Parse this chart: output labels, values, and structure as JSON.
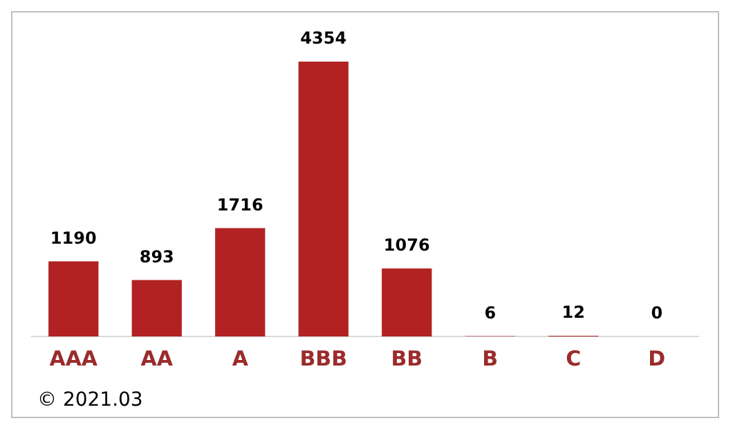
{
  "chart_data": {
    "type": "bar",
    "categories": [
      "AAA",
      "AA",
      "A",
      "BBB",
      "BB",
      "B",
      "C",
      "D"
    ],
    "values": [
      1190,
      893,
      1716,
      4354,
      1076,
      6,
      12,
      0
    ],
    "color": "#b22222",
    "data_labels": true,
    "grid": false,
    "legend": false,
    "tick_labels": "x",
    "annotations": [
      "© 2021.03"
    ]
  }
}
